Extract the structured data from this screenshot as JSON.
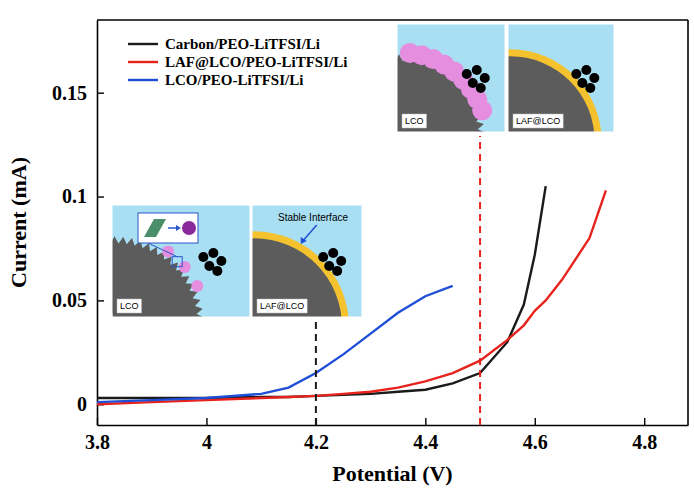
{
  "chart_data": {
    "type": "line",
    "x_label": "Potential (V)",
    "y_label": "Current (mA)",
    "x": [
      3.8,
      3.9,
      4.0,
      4.1,
      4.15,
      4.2,
      4.25,
      4.3,
      4.35,
      4.4,
      4.45,
      4.5,
      4.55,
      4.58,
      4.6,
      4.62,
      4.65,
      4.7,
      4.73
    ],
    "series": [
      {
        "name": "Carbon/PEO-LiTFSI/Li",
        "color": "#1a1a1a",
        "values": [
          0.003,
          0.003,
          0.003,
          0.0035,
          0.0035,
          0.004,
          0.0045,
          0.005,
          0.006,
          0.007,
          0.01,
          0.015,
          0.03,
          0.048,
          0.072,
          0.105,
          null,
          null,
          null
        ]
      },
      {
        "name": "LAF@LCO/PEO-LiTFSI/Li",
        "color": "#e8231d",
        "values": [
          0.0,
          0.001,
          0.002,
          0.003,
          0.0035,
          0.004,
          0.005,
          0.006,
          0.008,
          0.011,
          0.015,
          0.021,
          0.031,
          0.038,
          0.045,
          0.05,
          0.06,
          0.08,
          0.103
        ]
      },
      {
        "name": "LCO/PEO-LiTFSI/Li",
        "color": "#1f4fd6",
        "values": [
          0.001,
          0.002,
          0.003,
          0.005,
          0.008,
          0.015,
          0.024,
          0.034,
          0.044,
          0.052,
          0.057,
          null,
          null,
          null,
          null,
          null,
          null,
          null,
          null
        ]
      }
    ],
    "xlim": [
      3.8,
      4.88
    ],
    "xticks": [
      3.8,
      4,
      4.2,
      4.4,
      4.6,
      4.8
    ],
    "ylim": [
      -0.01,
      0.185
    ],
    "yticks": [
      0,
      0.05,
      0.1,
      0.15
    ],
    "reference_lines": [
      {
        "x": 4.2,
        "color": "#1a1a1a",
        "line_style": "dashed"
      },
      {
        "x": 4.5,
        "color": "#e8231d",
        "line_style": "dashed"
      }
    ],
    "annotations": [
      "LCO",
      "LAF@LCO",
      "Stable Interface",
      "LCO",
      "LAF@LCO"
    ],
    "legend": "upper left",
    "grid": false
  }
}
